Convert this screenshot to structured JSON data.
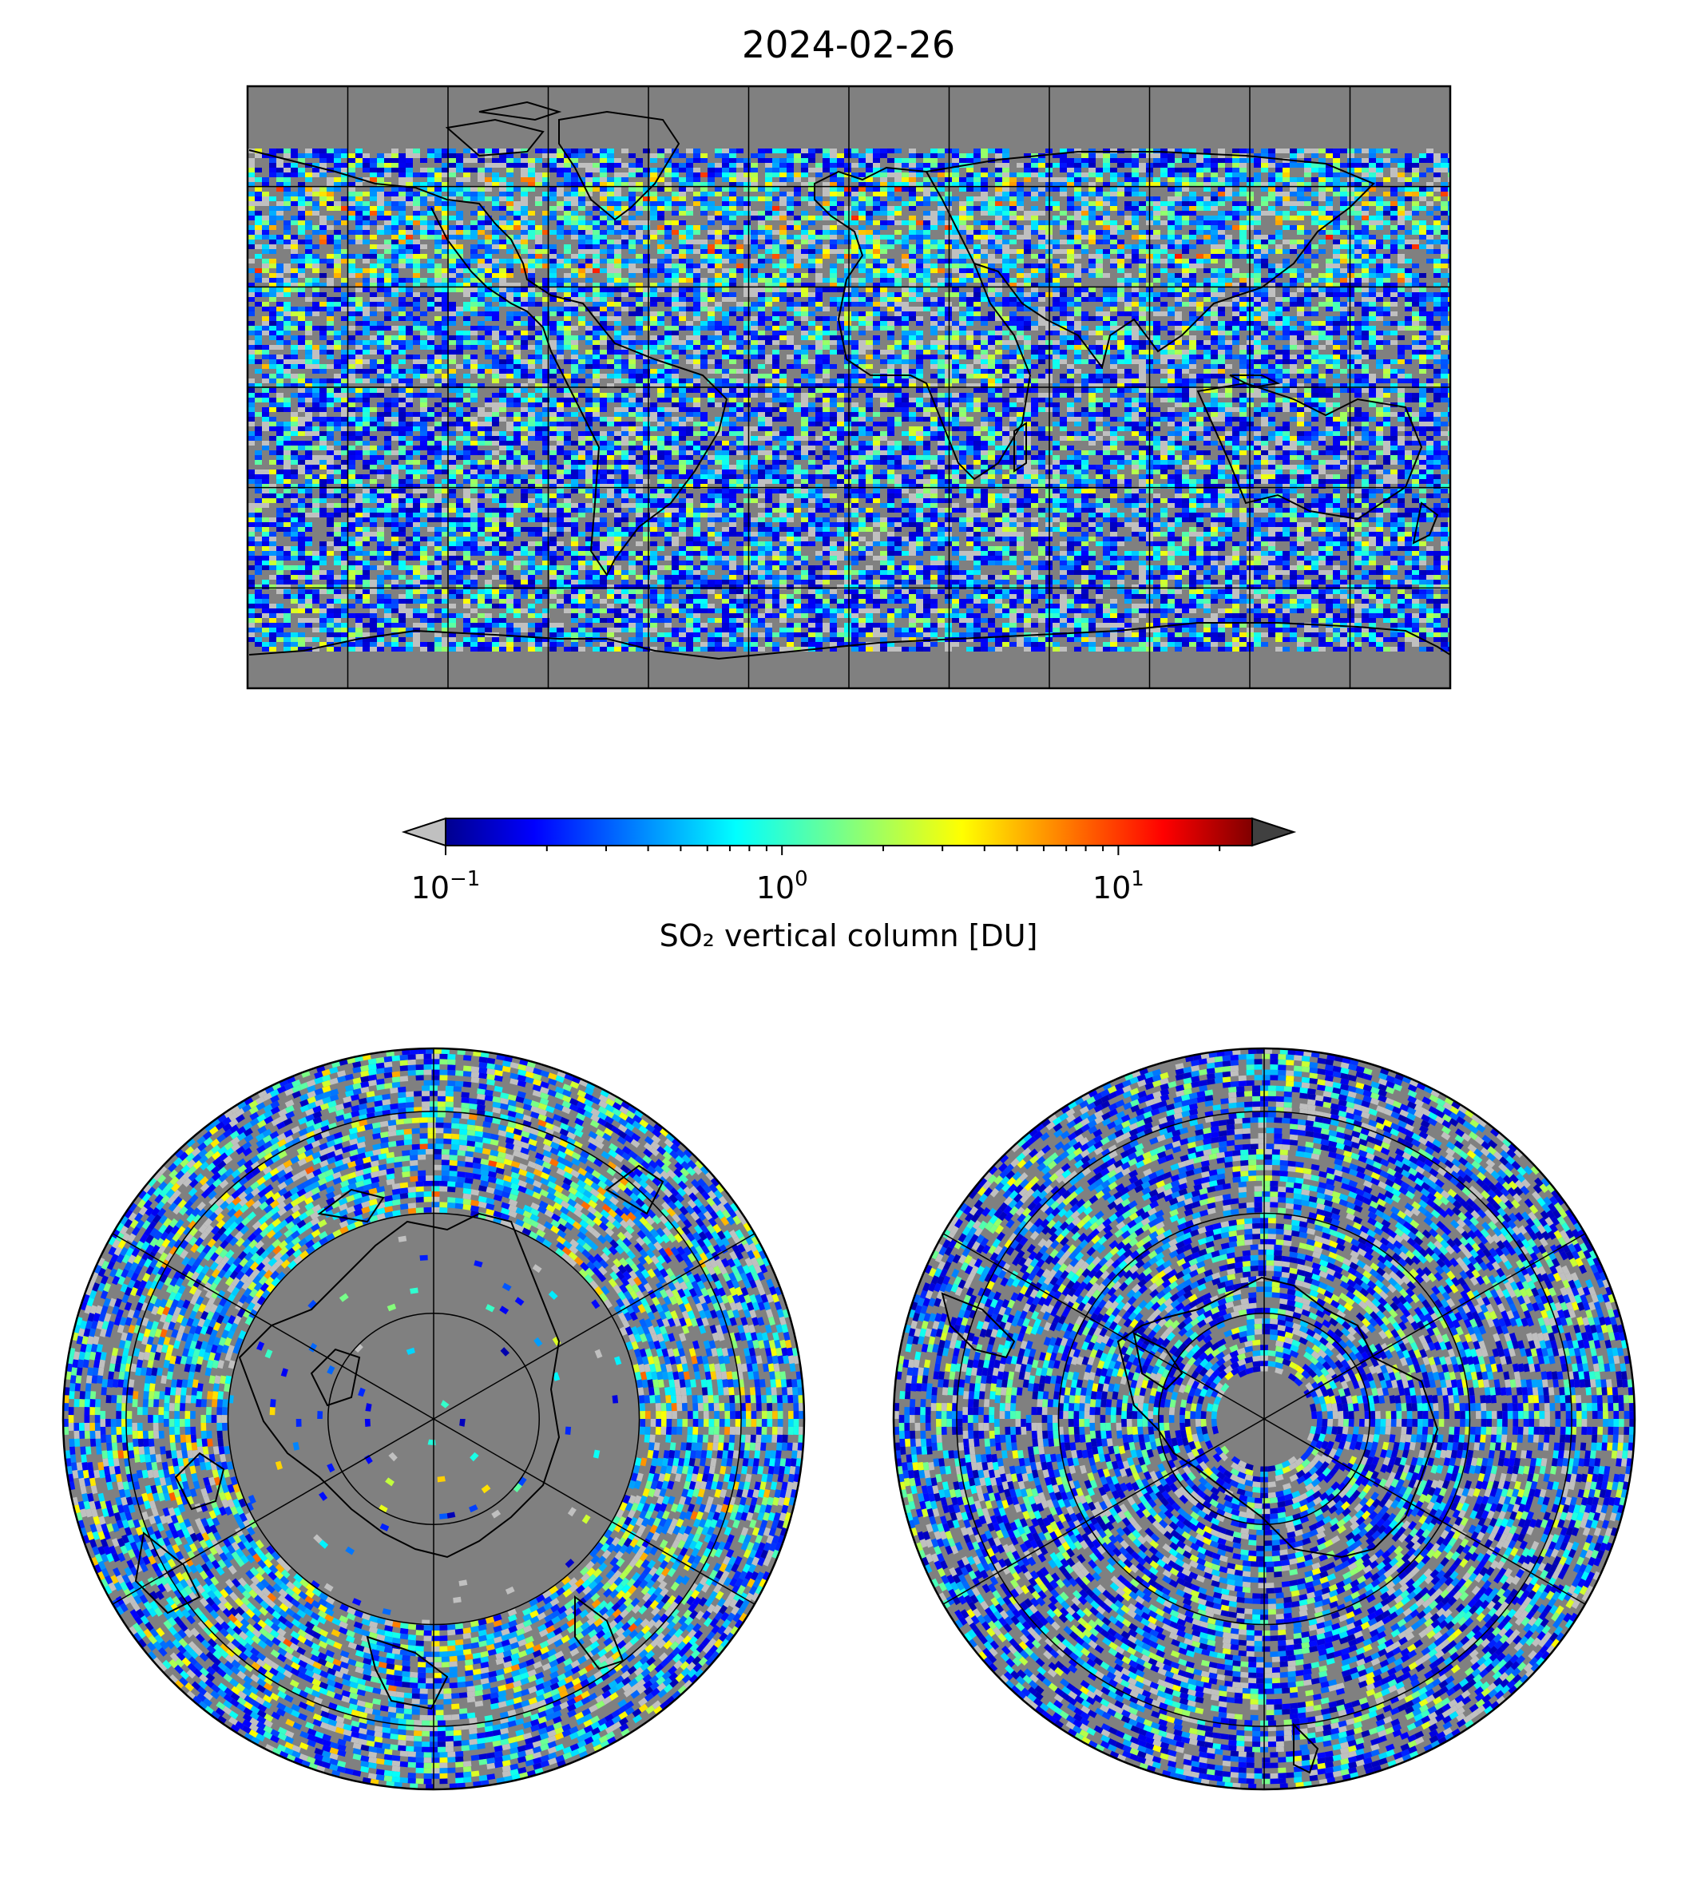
{
  "figure": {
    "title": "2024-02-26"
  },
  "colorbar": {
    "label": "SO₂ vertical column [DU]",
    "scale": "log",
    "range": [
      0.1,
      25
    ],
    "ticks": [
      {
        "base": "10",
        "exp": "−1",
        "value": 0.1
      },
      {
        "base": "10",
        "exp": "0",
        "value": 1
      },
      {
        "base": "10",
        "exp": "1",
        "value": 10
      }
    ],
    "colormap": "jet",
    "under_color": "#c0c0c0",
    "over_color": "#404040",
    "no_data_color": "#808080"
  },
  "panels": [
    {
      "name": "global-map",
      "projection": "plate-carree",
      "gridlines": "30 degree"
    },
    {
      "name": "north-polar-map",
      "projection": "north-polar-stereographic"
    },
    {
      "name": "south-polar-map",
      "projection": "south-polar-stereographic"
    }
  ]
}
